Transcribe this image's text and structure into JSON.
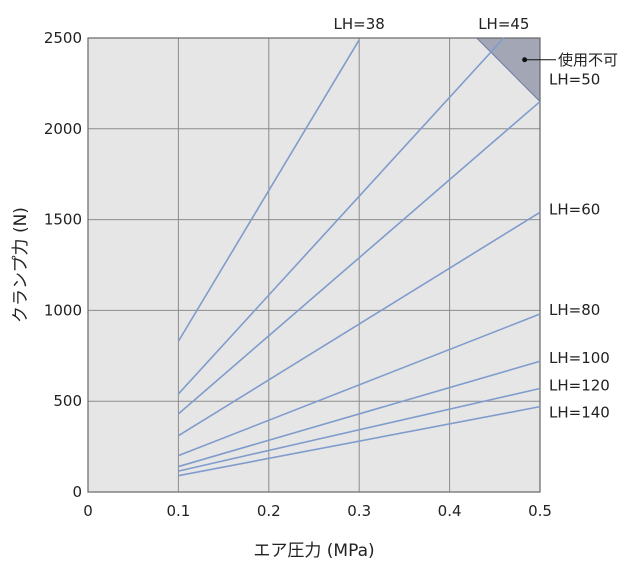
{
  "chart_data": {
    "type": "line",
    "xlabel": "エア圧力 (MPa)",
    "ylabel": "クランプ力 (N)",
    "xlim": [
      0,
      0.5
    ],
    "ylim": [
      0,
      2500
    ],
    "x_ticks": [
      "0",
      "0.1",
      "0.2",
      "0.3",
      "0.4",
      "0.5"
    ],
    "y_ticks": [
      "0",
      "500",
      "1000",
      "1500",
      "2000",
      "2500"
    ],
    "grid": true,
    "colors": {
      "plot_background": "#e6e6e6",
      "grid": "#8c8c8c",
      "series": "#7f9ccc",
      "unusable_region": "#a2a6b5",
      "unusable_border": "#6f7aa8"
    },
    "series": [
      {
        "name": "LH=38",
        "x": [
          0.1,
          0.3
        ],
        "y": [
          830,
          2490
        ]
      },
      {
        "name": "LH=45",
        "x": [
          0.1,
          0.46
        ],
        "y": [
          540,
          2500
        ]
      },
      {
        "name": "LH=50",
        "x": [
          0.1,
          0.5
        ],
        "y": [
          430,
          2150
        ]
      },
      {
        "name": "LH=60",
        "x": [
          0.1,
          0.5
        ],
        "y": [
          310,
          1540
        ]
      },
      {
        "name": "LH=80",
        "x": [
          0.1,
          0.5
        ],
        "y": [
          200,
          980
        ]
      },
      {
        "name": "LH=100",
        "x": [
          0.1,
          0.5
        ],
        "y": [
          140,
          720
        ]
      },
      {
        "name": "LH=120",
        "x": [
          0.1,
          0.5
        ],
        "y": [
          115,
          570
        ]
      },
      {
        "name": "LH=140",
        "x": [
          0.1,
          0.5
        ],
        "y": [
          90,
          470
        ]
      }
    ],
    "unusable_region": {
      "label": "使用不可",
      "x": [
        0.43,
        0.5,
        0.5
      ],
      "y": [
        2500,
        2500,
        2150
      ]
    }
  }
}
